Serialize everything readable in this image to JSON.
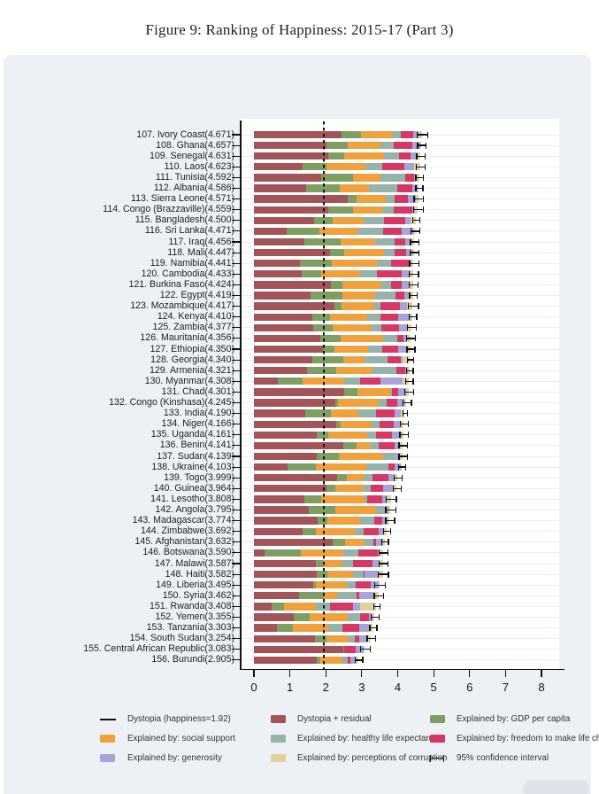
{
  "figure": {
    "title": "Figure 9: Ranking of Happiness: 2015-17 (Part 3)"
  },
  "colors": {
    "panel_bg": "#edf1f6",
    "plot_bg": "#ffffff",
    "axis": "#111111",
    "gridline": "#f4e9ea",
    "segments": {
      "dystopia_residual": "#a25459",
      "gdp": "#7f9e62",
      "social_support": "#f0a13c",
      "healthy_life": "#95b2ab",
      "freedom": "#d63765",
      "generosity": "#a8a4d9",
      "corruption": "#ddd2a0"
    }
  },
  "legend": {
    "items": [
      {
        "row": 0,
        "col": 0,
        "type": "line",
        "label": "Dystopia (happiness=1.92)"
      },
      {
        "row": 0,
        "col": 1,
        "type": "box",
        "color_key": "dystopia_residual",
        "label": "Dystopia + residual"
      },
      {
        "row": 0,
        "col": 2,
        "type": "box",
        "color_key": "gdp",
        "label": "Explained by: GDP per capita"
      },
      {
        "row": 1,
        "col": 0,
        "type": "box",
        "color_key": "social_support",
        "label": "Explained by: social support"
      },
      {
        "row": 1,
        "col": 1,
        "type": "box",
        "color_key": "healthy_life",
        "label": "Explained by: healthy life expectancy"
      },
      {
        "row": 1,
        "col": 2,
        "type": "box",
        "color_key": "freedom",
        "label": "Explained by: freedom to make life choices"
      },
      {
        "row": 2,
        "col": 0,
        "type": "box",
        "color_key": "generosity",
        "label": "Explained by: generosity"
      },
      {
        "row": 2,
        "col": 1,
        "type": "box",
        "color_key": "corruption",
        "label": "Explained by: perceptions of corruption"
      },
      {
        "row": 2,
        "col": 2,
        "type": "ci",
        "label": "95% confidence interval"
      }
    ]
  },
  "chart_data": {
    "type": "bar",
    "orientation": "horizontal_stacked",
    "title": "Figure 9: Ranking of Happiness: 2015-17 (Part 3)",
    "xlabel": "",
    "ylabel": "",
    "x_ticks": [
      0,
      1,
      2,
      3,
      4,
      5,
      6,
      7,
      8
    ],
    "xlim": [
      -0.35,
      8.55
    ],
    "grid": "faint horizontal per-country lines",
    "legend_position": "bottom, three columns",
    "dystopia_line": 1.92,
    "segment_keys": [
      "dystopia_residual",
      "gdp",
      "social_support",
      "healthy_life",
      "freedom",
      "generosity",
      "corruption"
    ],
    "segment_labels": {
      "dystopia_residual": "Dystopia + residual",
      "gdp": "Explained by: GDP per capita",
      "social_support": "Explained by: social support",
      "healthy_life": "Explained by: healthy life expectancy",
      "freedom": "Explained by: freedom to make life choices",
      "generosity": "Explained by: generosity",
      "corruption": "Explained by: perceptions of corruption"
    },
    "ci_label": "95% confidence interval",
    "countries": [
      {
        "rank": 107,
        "name": "Ivory Coast",
        "score": "4.671",
        "segments": [
          2.43,
          0.541,
          0.872,
          0.232,
          0.352,
          0.154,
          0.09
        ],
        "ci": 0.15
      },
      {
        "rank": 108,
        "name": "Ghana",
        "score": "4.657",
        "segments": [
          2.026,
          0.592,
          0.899,
          0.38,
          0.508,
          0.216,
          0.036
        ],
        "ci": 0.12
      },
      {
        "rank": 109,
        "name": "Senegal",
        "score": "4.631",
        "segments": [
          2.073,
          0.429,
          1.117,
          0.426,
          0.309,
          0.183,
          0.094
        ],
        "ci": 0.12
      },
      {
        "rank": 110,
        "name": "Laos",
        "score": "4.623",
        "segments": [
          1.349,
          0.672,
          1.079,
          0.458,
          0.621,
          0.27,
          0.174
        ],
        "ci": 0.12
      },
      {
        "rank": 111,
        "name": "Tunisia",
        "score": "4.592",
        "segments": [
          1.863,
          0.891,
          0.774,
          0.681,
          0.247,
          0.06,
          0.076
        ],
        "ci": 0.1
      },
      {
        "rank": 112,
        "name": "Albania",
        "score": "4.586",
        "segments": [
          1.463,
          0.916,
          0.817,
          0.79,
          0.419,
          0.149,
          0.032
        ],
        "ci": 0.1
      },
      {
        "rank": 113,
        "name": "Sierra Leone",
        "score": "4.571",
        "segments": [
          2.603,
          0.256,
          0.813,
          0.253,
          0.355,
          0.238,
          0.053
        ],
        "ci": 0.13
      },
      {
        "rank": 114,
        "name": "Congo (Brazzaville)",
        "score": "4.559",
        "segments": [
          2.065,
          0.682,
          0.811,
          0.343,
          0.514,
          0.077,
          0.067
        ],
        "ci": 0.14
      },
      {
        "rank": 115,
        "name": "Bangladesh",
        "score": "4.500",
        "segments": [
          1.662,
          0.532,
          0.85,
          0.579,
          0.58,
          0.153,
          0.144
        ],
        "ci": 0.1
      },
      {
        "rank": 116,
        "name": "Sri Lanka",
        "score": "4.471",
        "segments": [
          0.911,
          0.918,
          1.056,
          0.7,
          0.531,
          0.313,
          0.042
        ],
        "ci": 0.12
      },
      {
        "rank": 117,
        "name": "Iraq",
        "score": "4.456",
        "segments": [
          1.392,
          1.01,
          0.971,
          0.536,
          0.304,
          0.148,
          0.095
        ],
        "ci": 0.12
      },
      {
        "rank": 118,
        "name": "Mali",
        "score": "4.447",
        "segments": [
          2.117,
          0.385,
          1.105,
          0.308,
          0.327,
          0.153,
          0.052
        ],
        "ci": 0.12
      },
      {
        "rank": 119,
        "name": "Namibia",
        "score": "4.441",
        "segments": [
          1.287,
          0.874,
          1.281,
          0.365,
          0.519,
          0.051,
          0.064
        ],
        "ci": 0.13
      },
      {
        "rank": 120,
        "name": "Cambodia",
        "score": "4.433",
        "segments": [
          1.321,
          0.549,
          1.088,
          0.457,
          0.696,
          0.257,
          0.065
        ],
        "ci": 0.13
      },
      {
        "rank": 121,
        "name": "Burkina Faso",
        "score": "4.424",
        "segments": [
          2.144,
          0.314,
          1.097,
          0.254,
          0.312,
          0.175,
          0.128
        ],
        "ci": 0.12
      },
      {
        "rank": 122,
        "name": "Egypt",
        "score": "4.419",
        "segments": [
          1.577,
          0.885,
          0.915,
          0.562,
          0.25,
          0.116,
          0.114
        ],
        "ci": 0.1
      },
      {
        "rank": 123,
        "name": "Mozambique",
        "score": "4.417",
        "segments": [
          2.249,
          0.198,
          0.902,
          0.173,
          0.531,
          0.206,
          0.158
        ],
        "ci": 0.14
      },
      {
        "rank": 124,
        "name": "Kenya",
        "score": "4.410",
        "segments": [
          1.614,
          0.493,
          1.009,
          0.416,
          0.469,
          0.348,
          0.061
        ],
        "ci": 0.1
      },
      {
        "rank": 125,
        "name": "Zambia",
        "score": "4.377",
        "segments": [
          1.638,
          0.562,
          1.047,
          0.295,
          0.503,
          0.247,
          0.085
        ],
        "ci": 0.13
      },
      {
        "rank": 126,
        "name": "Mauritania",
        "score": "4.356",
        "segments": [
          1.845,
          0.57,
          1.167,
          0.4,
          0.19,
          0.097,
          0.087
        ],
        "ci": 0.12
      },
      {
        "rank": 127,
        "name": "Ethiopia",
        "score": "4.350",
        "segments": [
          1.92,
          0.308,
          0.95,
          0.391,
          0.452,
          0.244,
          0.085
        ],
        "ci": 0.11
      },
      {
        "rank": 128,
        "name": "Georgia",
        "score": "4.340",
        "segments": [
          1.636,
          0.853,
          0.592,
          0.643,
          0.375,
          0.041,
          0.2
        ],
        "ci": 0.09
      },
      {
        "rank": 129,
        "name": "Armenia",
        "score": "4.321",
        "segments": [
          1.484,
          0.816,
          0.99,
          0.666,
          0.26,
          0.077,
          0.028
        ],
        "ci": 0.09
      },
      {
        "rank": 130,
        "name": "Myanmar",
        "score": "4.308",
        "segments": [
          0.667,
          0.682,
          1.174,
          0.429,
          0.58,
          0.598,
          0.178
        ],
        "ci": 0.11
      },
      {
        "rank": 131,
        "name": "Chad",
        "score": "4.301",
        "segments": [
          2.518,
          0.358,
          0.907,
          0.053,
          0.188,
          0.199,
          0.078
        ],
        "ci": 0.12
      },
      {
        "rank": 132,
        "name": "Congo (Kinshasa)",
        "score": "4.245",
        "segments": [
          2.275,
          0.069,
          1.136,
          0.204,
          0.312,
          0.197,
          0.052
        ],
        "ci": 0.12
      },
      {
        "rank": 133,
        "name": "India",
        "score": "4.190",
        "segments": [
          1.433,
          0.721,
          0.747,
          0.485,
          0.539,
          0.172,
          0.093
        ],
        "ci": 0.06
      },
      {
        "rank": 134,
        "name": "Niger",
        "score": "4.166",
        "segments": [
          2.283,
          0.131,
          0.867,
          0.221,
          0.39,
          0.175,
          0.099
        ],
        "ci": 0.11
      },
      {
        "rank": 135,
        "name": "Uganda",
        "score": "4.161",
        "segments": [
          1.743,
          0.322,
          1.09,
          0.237,
          0.45,
          0.259,
          0.06
        ],
        "ci": 0.12
      },
      {
        "rank": 136,
        "name": "Benin",
        "score": "4.141",
        "segments": [
          2.481,
          0.378,
          0.372,
          0.24,
          0.44,
          0.163,
          0.067
        ],
        "ci": 0.12
      },
      {
        "rank": 137,
        "name": "Sudan",
        "score": "4.139",
        "segments": [
          1.75,
          0.605,
          1.24,
          0.312,
          0.016,
          0.134,
          0.082
        ],
        "ci": 0.12
      },
      {
        "rank": 138,
        "name": "Ukraine",
        "score": "4.103",
        "segments": [
          0.927,
          0.793,
          1.413,
          0.609,
          0.163,
          0.187,
          0.011
        ],
        "ci": 0.1
      },
      {
        "rank": 139,
        "name": "Togo",
        "score": "3.999",
        "segments": [
          2.32,
          0.259,
          0.474,
          0.253,
          0.434,
          0.158,
          0.101
        ],
        "ci": 0.11
      },
      {
        "rank": 140,
        "name": "Guinea",
        "score": "3.964",
        "segments": [
          2.013,
          0.244,
          0.791,
          0.194,
          0.348,
          0.264,
          0.11
        ],
        "ci": 0.11
      },
      {
        "rank": 141,
        "name": "Lesotho",
        "score": "3.808",
        "segments": [
          1.391,
          0.472,
          1.215,
          0.079,
          0.423,
          0.116,
          0.112
        ],
        "ci": 0.14
      },
      {
        "rank": 142,
        "name": "Angola",
        "score": "3.795",
        "segments": [
          1.531,
          0.73,
          1.125,
          0.269,
          0.0,
          0.079,
          0.061
        ],
        "ci": 0.14
      },
      {
        "rank": 143,
        "name": "Madagascar",
        "score": "3.774",
        "segments": [
          1.777,
          0.262,
          0.908,
          0.402,
          0.221,
          0.155,
          0.049
        ],
        "ci": 0.12
      },
      {
        "rank": 144,
        "name": "Zimbabwe",
        "score": "3.692",
        "segments": [
          1.356,
          0.357,
          1.094,
          0.248,
          0.406,
          0.132,
          0.099
        ],
        "ci": 0.1
      },
      {
        "rank": 145,
        "name": "Afghanistan",
        "score": "3.632",
        "segments": [
          2.196,
          0.332,
          0.537,
          0.255,
          0.085,
          0.191,
          0.036
        ],
        "ci": 0.09
      },
      {
        "rank": 146,
        "name": "Botswana",
        "score": "3.590",
        "segments": [
          0.291,
          1.017,
          1.174,
          0.417,
          0.557,
          0.042,
          0.092
        ],
        "ci": 0.12
      },
      {
        "rank": 147,
        "name": "Malawi",
        "score": "3.587",
        "segments": [
          1.733,
          0.186,
          0.541,
          0.306,
          0.531,
          0.21,
          0.08
        ],
        "ci": 0.12
      },
      {
        "rank": 148,
        "name": "Haiti",
        "score": "3.582",
        "segments": [
          1.737,
          0.315,
          0.714,
          0.289,
          0.025,
          0.392,
          0.11
        ],
        "ci": 0.14
      },
      {
        "rank": 149,
        "name": "Liberia",
        "score": "3.495",
        "segments": [
          1.639,
          0.076,
          0.858,
          0.267,
          0.419,
          0.206,
          0.03
        ],
        "ci": 0.15
      },
      {
        "rank": 150,
        "name": "Syria",
        "score": "3.462",
        "segments": [
          1.244,
          0.689,
          0.382,
          0.539,
          0.088,
          0.376,
          0.144
        ],
        "ci": 0.13
      },
      {
        "rank": 151,
        "name": "Rwanda",
        "score": "3.408",
        "segments": [
          0.5,
          0.332,
          0.896,
          0.4,
          0.636,
          0.2,
          0.444
        ],
        "ci": 0.09
      },
      {
        "rank": 152,
        "name": "Yemen",
        "score": "3.355",
        "segments": [
          1.106,
          0.442,
          1.073,
          0.343,
          0.244,
          0.083,
          0.064
        ],
        "ci": 0.11
      },
      {
        "rank": 153,
        "name": "Tanzania",
        "score": "3.303",
        "segments": [
          0.628,
          0.455,
          0.991,
          0.381,
          0.481,
          0.27,
          0.097
        ],
        "ci": 0.1
      },
      {
        "rank": 154,
        "name": "South Sudan",
        "score": "3.254",
        "segments": [
          1.69,
          0.337,
          0.608,
          0.177,
          0.112,
          0.224,
          0.106
        ],
        "ci": 0.12
      },
      {
        "rank": 155,
        "name": "Central African Republic",
        "score": "3.083",
        "segments": [
          2.488,
          0.024,
          0.0,
          0.01,
          0.305,
          0.218,
          0.038
        ],
        "ci": 0.13
      },
      {
        "rank": 156,
        "name": "Burundi",
        "score": "2.905",
        "segments": [
          1.752,
          0.091,
          0.627,
          0.145,
          0.065,
          0.149,
          0.076
        ],
        "ci": 0.11
      }
    ]
  }
}
